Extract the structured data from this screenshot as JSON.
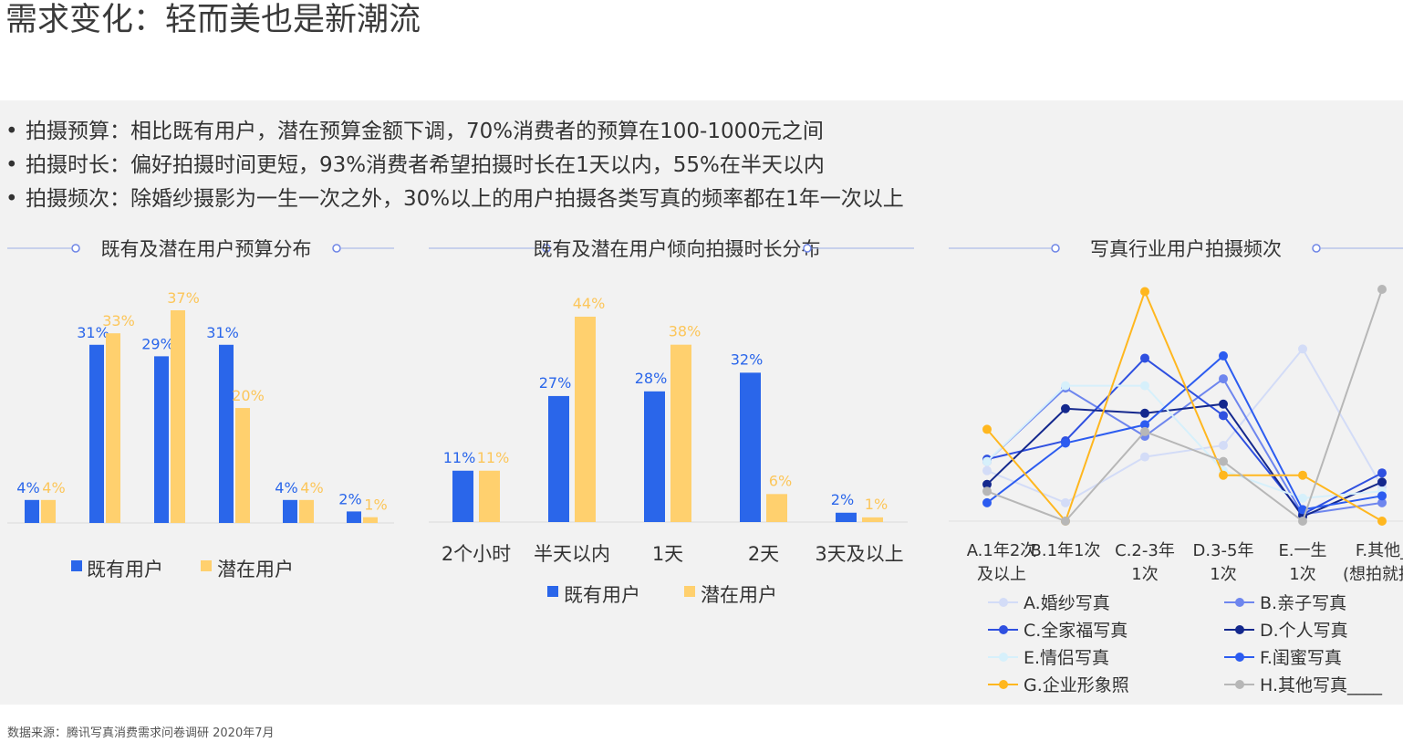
{
  "title": "需求变化：轻而美也是新潮流",
  "bullets": [
    "拍摄预算：相比既有用户，潜在预算金额下调，70%消费者的预算在100-1000元之间",
    "拍摄时长：偏好拍摄时间更短，93%消费者希望拍摄时长在1天以内，55%在半天以内",
    "拍摄频次：除婚纱摄影为一生一次之外，30%以上的用户拍摄各类写真的频率都在1年一次以上"
  ],
  "source": "数据来源：腾讯写真消费需求问卷调研  2020年7月",
  "colors": {
    "blue": "#2a66ea",
    "yellow": "#ffd06e",
    "blue_label": "#2a66ea",
    "yellow_label": "#fcc65a",
    "divider": "#9fb0e6"
  },
  "chart_data": [
    {
      "type": "bar",
      "title": "既有及潜在用户预算分布",
      "categories": [
        "",
        "",
        "",
        "",
        "",
        ""
      ],
      "series": [
        {
          "name": "既有用户",
          "values": [
            4,
            31,
            29,
            31,
            4,
            2
          ],
          "labels": [
            "4%",
            "31%",
            "29%",
            "31%",
            "4%",
            "2%"
          ]
        },
        {
          "name": "潜在用户",
          "values": [
            4,
            33,
            37,
            20,
            4,
            1
          ],
          "labels": [
            "4%",
            "33%",
            "37%",
            "20%",
            "4%",
            "1%"
          ]
        }
      ],
      "ylim": [
        0,
        37
      ],
      "legend": "bottom"
    },
    {
      "type": "bar",
      "title": "既有及潜在用户倾向拍摄时长分布",
      "categories": [
        "2个小时",
        "半天以内",
        "1天",
        "2天",
        "3天及以上"
      ],
      "series": [
        {
          "name": "既有用户",
          "values": [
            11,
            27,
            28,
            32,
            2
          ],
          "labels": [
            "11%",
            "27%",
            "28%",
            "32%",
            "2%"
          ]
        },
        {
          "name": "潜在用户",
          "values": [
            11,
            44,
            38,
            6,
            1
          ],
          "labels": [
            "11%",
            "44%",
            "38%",
            "6%",
            "1%"
          ]
        }
      ],
      "ylim": [
        0,
        44
      ],
      "legend": "bottom"
    },
    {
      "type": "line",
      "title": "写真行业用户拍摄频次",
      "categories": [
        [
          "A.1年2次",
          "及以上"
        ],
        [
          "B.1年1次"
        ],
        [
          "C.2-3年",
          "1次"
        ],
        [
          "D.3-5年",
          "1次"
        ],
        [
          "E.一生",
          "1次"
        ],
        [
          "F.其他_",
          "(想拍就拍)"
        ]
      ],
      "series": [
        {
          "name": "A.婚纱写真",
          "color": "#d3dcf7",
          "values": [
            22,
            8,
            28,
            33,
            75,
            15
          ]
        },
        {
          "name": "B.亲子写真",
          "color": "#6e86ee",
          "values": [
            26,
            58,
            37,
            62,
            3,
            8
          ]
        },
        {
          "name": "C.全家福写真",
          "color": "#2f50e0",
          "values": [
            27,
            35,
            71,
            46,
            3,
            21
          ]
        },
        {
          "name": "D.个人写真",
          "color": "#14288d",
          "values": [
            16,
            49,
            47,
            51,
            2,
            17
          ]
        },
        {
          "name": "E.情侣写真",
          "color": "#d6f0fb",
          "values": [
            26,
            59,
            59,
            22,
            10,
            13
          ]
        },
        {
          "name": "F.闺蜜写真",
          "color": "#2c5cf0",
          "values": [
            8,
            34,
            42,
            72,
            5,
            11
          ]
        },
        {
          "name": "G.企业形象照",
          "color": "#ffb71f",
          "values": [
            40,
            0,
            100,
            20,
            20,
            0
          ]
        },
        {
          "name": "H.其他写真____",
          "color": "#b7b7b7",
          "values": [
            13,
            0,
            39,
            26,
            0,
            101
          ]
        }
      ],
      "legend": "bottom"
    }
  ]
}
